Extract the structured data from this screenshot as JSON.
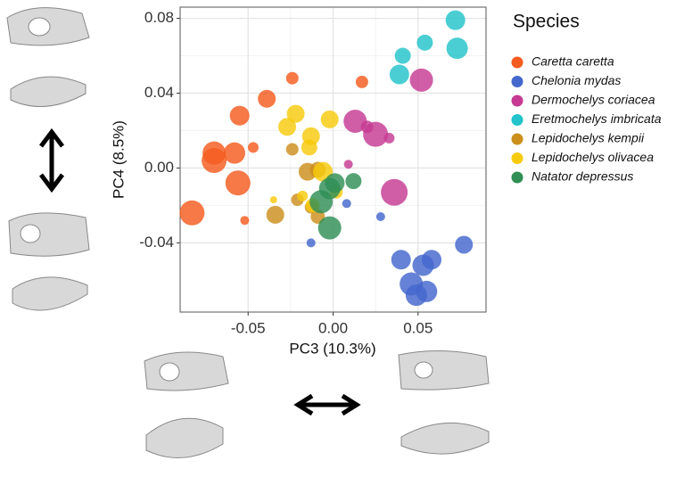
{
  "chart_data": {
    "type": "scatter",
    "xlabel": "PC3 (10.3%)",
    "ylabel": "PC4 (8.5%)",
    "legend_title": "Species",
    "xlim": [
      -0.09,
      0.09
    ],
    "ylim": [
      -0.077,
      0.086
    ],
    "xticks": [
      -0.05,
      {
        "value": 0,
        "label": "0.00"
      },
      0.05
    ],
    "yticks": [
      -0.04,
      {
        "value": 0,
        "label": "0.00"
      },
      0.04,
      0.08
    ],
    "grid": true,
    "legend": "right",
    "series": [
      {
        "name": "Caretta caretta",
        "color": "#f45b1f",
        "x": [
          -0.024,
          0.017,
          -0.039,
          -0.055,
          -0.047,
          -0.07,
          -0.058,
          -0.07,
          -0.056,
          -0.083,
          -0.052
        ],
        "values": [
          0.048,
          0.046,
          0.037,
          0.028,
          0.011,
          0.008,
          0.008,
          0.004,
          -0.008,
          -0.024,
          -0.028
        ],
        "sizes": [
          7,
          7,
          10,
          11,
          6,
          13,
          12,
          14,
          14,
          14,
          5
        ]
      },
      {
        "name": "Chelonia mydas",
        "color": "#4467cd",
        "x": [
          0.008,
          -0.013,
          0.028,
          0.077,
          0.04,
          0.058,
          0.053,
          0.046,
          0.055,
          0.049
        ],
        "values": [
          -0.019,
          -0.04,
          -0.026,
          -0.041,
          -0.049,
          -0.049,
          -0.052,
          -0.062,
          -0.066,
          -0.068
        ],
        "sizes": [
          5,
          5,
          5,
          10,
          11,
          11,
          12,
          13,
          12,
          12
        ]
      },
      {
        "name": "Dermochelys coriacea",
        "color": "#c63a93",
        "x": [
          0.052,
          0.013,
          0.02,
          0.025,
          0.033,
          0.009,
          0.036
        ],
        "values": [
          0.047,
          0.025,
          0.022,
          0.018,
          0.016,
          0.002,
          -0.013
        ],
        "sizes": [
          13,
          13,
          7,
          14,
          6,
          5,
          15
        ]
      },
      {
        "name": "Eretmochelys imbricata",
        "color": "#22c3cb",
        "x": [
          0.072,
          0.054,
          0.041,
          0.073,
          0.039
        ],
        "values": [
          0.079,
          0.067,
          0.06,
          0.064,
          0.05
        ],
        "sizes": [
          11,
          9,
          9,
          12,
          11
        ]
      },
      {
        "name": "Lepidochelys kempii",
        "color": "#cc8f1c",
        "x": [
          -0.024,
          -0.015,
          -0.009,
          -0.021,
          -0.034,
          -0.013,
          -0.009
        ],
        "values": [
          0.01,
          -0.002,
          -0.001,
          -0.017,
          -0.025,
          -0.021,
          -0.026
        ],
        "sizes": [
          7,
          10,
          9,
          7,
          10,
          7,
          8
        ]
      },
      {
        "name": "Lepidochelys olivacea",
        "color": "#f7cb0c",
        "x": [
          -0.027,
          -0.022,
          -0.002,
          -0.013,
          -0.014,
          -0.006,
          -0.035,
          -0.018,
          -0.012,
          0.002
        ],
        "values": [
          0.022,
          0.029,
          0.026,
          0.017,
          0.011,
          -0.002,
          -0.017,
          -0.015,
          -0.02,
          -0.013
        ],
        "sizes": [
          10,
          10,
          10,
          10,
          9,
          11,
          4,
          6,
          8,
          7
        ]
      },
      {
        "name": "Natator depressus",
        "color": "#2f8f55",
        "x": [
          0.001,
          0.012,
          -0.002,
          -0.007,
          -0.002
        ],
        "values": [
          -0.008,
          -0.007,
          -0.011,
          -0.018,
          -0.032
        ],
        "sizes": [
          11,
          9,
          12,
          13,
          13
        ]
      }
    ]
  }
}
